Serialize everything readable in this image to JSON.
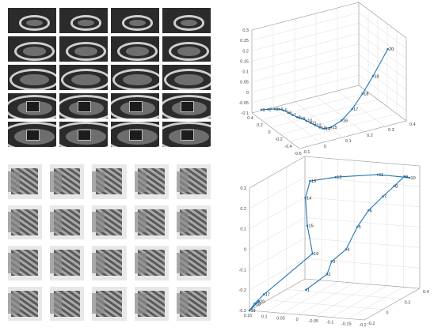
{
  "top_images": {
    "rows": 5,
    "cols": 4
  },
  "bottom_images": {
    "rows": 4,
    "cols": 5
  },
  "chart_data": [
    {
      "type": "line",
      "projection": "3d",
      "grid": true,
      "line_color": "#1f77b4",
      "z_ticks": [
        "0.3",
        "0.25",
        "0.2",
        "0.15",
        "0.1",
        "0.05",
        "0",
        "-0.05",
        "-0.1"
      ],
      "x_ticks": [
        "0.4",
        "0.2",
        "0",
        "-0.2",
        "-0.4",
        "-0.6"
      ],
      "y_ticks": [
        "-0.1",
        "0",
        "0.1",
        "0.2",
        "0.3",
        "0.4"
      ],
      "point_labels": [
        "1",
        "2",
        "3",
        "4",
        "5",
        "6",
        "7",
        "8",
        "9",
        "10",
        "11",
        "12",
        "13",
        "14",
        "15",
        "16",
        "17",
        "18",
        "19",
        "20"
      ],
      "points": [
        [
          0.2,
          -0.1,
          -0.05
        ],
        [
          0.15,
          -0.08,
          -0.045
        ],
        [
          0.1,
          -0.06,
          -0.04
        ],
        [
          0.05,
          -0.05,
          -0.035
        ],
        [
          0.0,
          -0.04,
          -0.035
        ],
        [
          -0.05,
          -0.03,
          -0.04
        ],
        [
          -0.1,
          -0.02,
          -0.045
        ],
        [
          -0.15,
          -0.01,
          -0.05
        ],
        [
          -0.2,
          0.0,
          -0.05
        ],
        [
          -0.25,
          0.01,
          -0.055
        ],
        [
          -0.3,
          0.02,
          -0.06
        ],
        [
          -0.35,
          0.03,
          -0.065
        ],
        [
          -0.4,
          0.04,
          -0.07
        ],
        [
          -0.45,
          0.05,
          -0.07
        ],
        [
          -0.5,
          0.07,
          -0.06
        ],
        [
          -0.5,
          0.12,
          -0.04
        ],
        [
          -0.45,
          0.18,
          -0.01
        ],
        [
          -0.4,
          0.24,
          0.04
        ],
        [
          -0.35,
          0.3,
          0.1
        ],
        [
          -0.3,
          0.38,
          0.2
        ]
      ]
    },
    {
      "type": "line",
      "projection": "3d",
      "grid": true,
      "line_color": "#1f77b4",
      "z_ticks": [
        "0.3",
        "0.2",
        "0.1",
        "0",
        "-0.1",
        "-0.2",
        "-0.3"
      ],
      "x_ticks": [
        "0.15",
        "0.1",
        "0.05",
        "0",
        "-0.05",
        "-0.1",
        "-0.15",
        "-0.2"
      ],
      "y_ticks": [
        "-0.2",
        "0",
        "0.2",
        "0.4"
      ],
      "point_labels": [
        "1",
        "2",
        "3",
        "4",
        "5",
        "6",
        "7",
        "8",
        "9",
        "10",
        "11",
        "12",
        "13",
        "14",
        "15",
        "16",
        "17",
        "18",
        "19",
        "20"
      ],
      "points": [
        [
          0.02,
          -0.05,
          -0.22
        ],
        [
          -0.03,
          0.0,
          -0.15
        ],
        [
          -0.03,
          0.05,
          -0.1
        ],
        [
          -0.06,
          0.1,
          -0.05
        ],
        [
          -0.08,
          0.15,
          0.05
        ],
        [
          -0.1,
          0.2,
          0.12
        ],
        [
          -0.13,
          0.25,
          0.18
        ],
        [
          -0.15,
          0.3,
          0.22
        ],
        [
          -0.17,
          0.34,
          0.26
        ],
        [
          -0.18,
          0.36,
          0.25
        ],
        [
          -0.1,
          0.3,
          0.27
        ],
        [
          0.0,
          0.2,
          0.27
        ],
        [
          0.05,
          0.1,
          0.27
        ],
        [
          0.05,
          0.05,
          0.2
        ],
        [
          0.03,
          0.0,
          0.08
        ],
        [
          0.0,
          -0.05,
          -0.04
        ],
        [
          0.12,
          -0.15,
          -0.23
        ],
        [
          0.14,
          -0.18,
          -0.27
        ],
        [
          0.15,
          -0.2,
          -0.3
        ],
        [
          0.13,
          -0.17,
          -0.26
        ]
      ]
    }
  ]
}
